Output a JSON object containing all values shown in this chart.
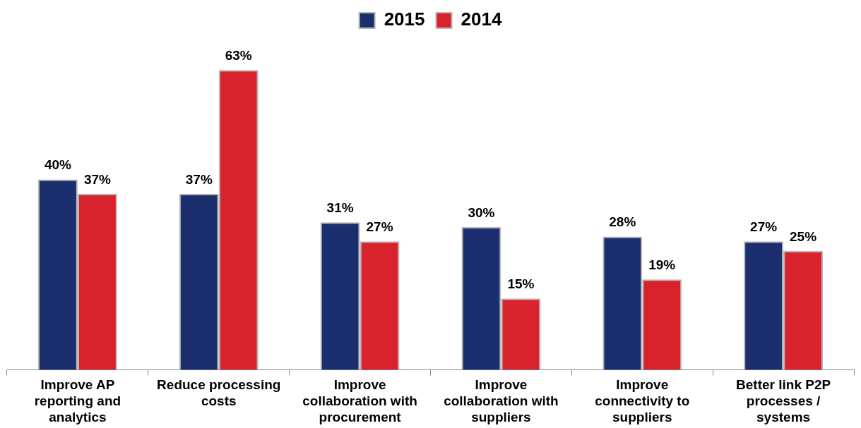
{
  "chart_data": {
    "type": "bar",
    "categories": [
      "Improve AP reporting and analytics",
      "Reduce processing costs",
      "Improve collaboration with procurement",
      "Improve collaboration with suppliers",
      "Improve connectivity to suppliers",
      "Better link P2P processes / systems"
    ],
    "series": [
      {
        "name": "2015",
        "color": "#1b2f6e",
        "values": [
          40,
          37,
          31,
          30,
          28,
          27
        ],
        "value_labels": [
          "40%",
          "37%",
          "31%",
          "30%",
          "28%",
          "27%"
        ]
      },
      {
        "name": "2014",
        "color": "#d8232c",
        "values": [
          37,
          63,
          27,
          15,
          19,
          25
        ],
        "value_labels": [
          "37%",
          "63%",
          "27%",
          "15%",
          "19%",
          "25%"
        ]
      }
    ],
    "legend": "top",
    "grid": false,
    "tick_labels": "x"
  }
}
